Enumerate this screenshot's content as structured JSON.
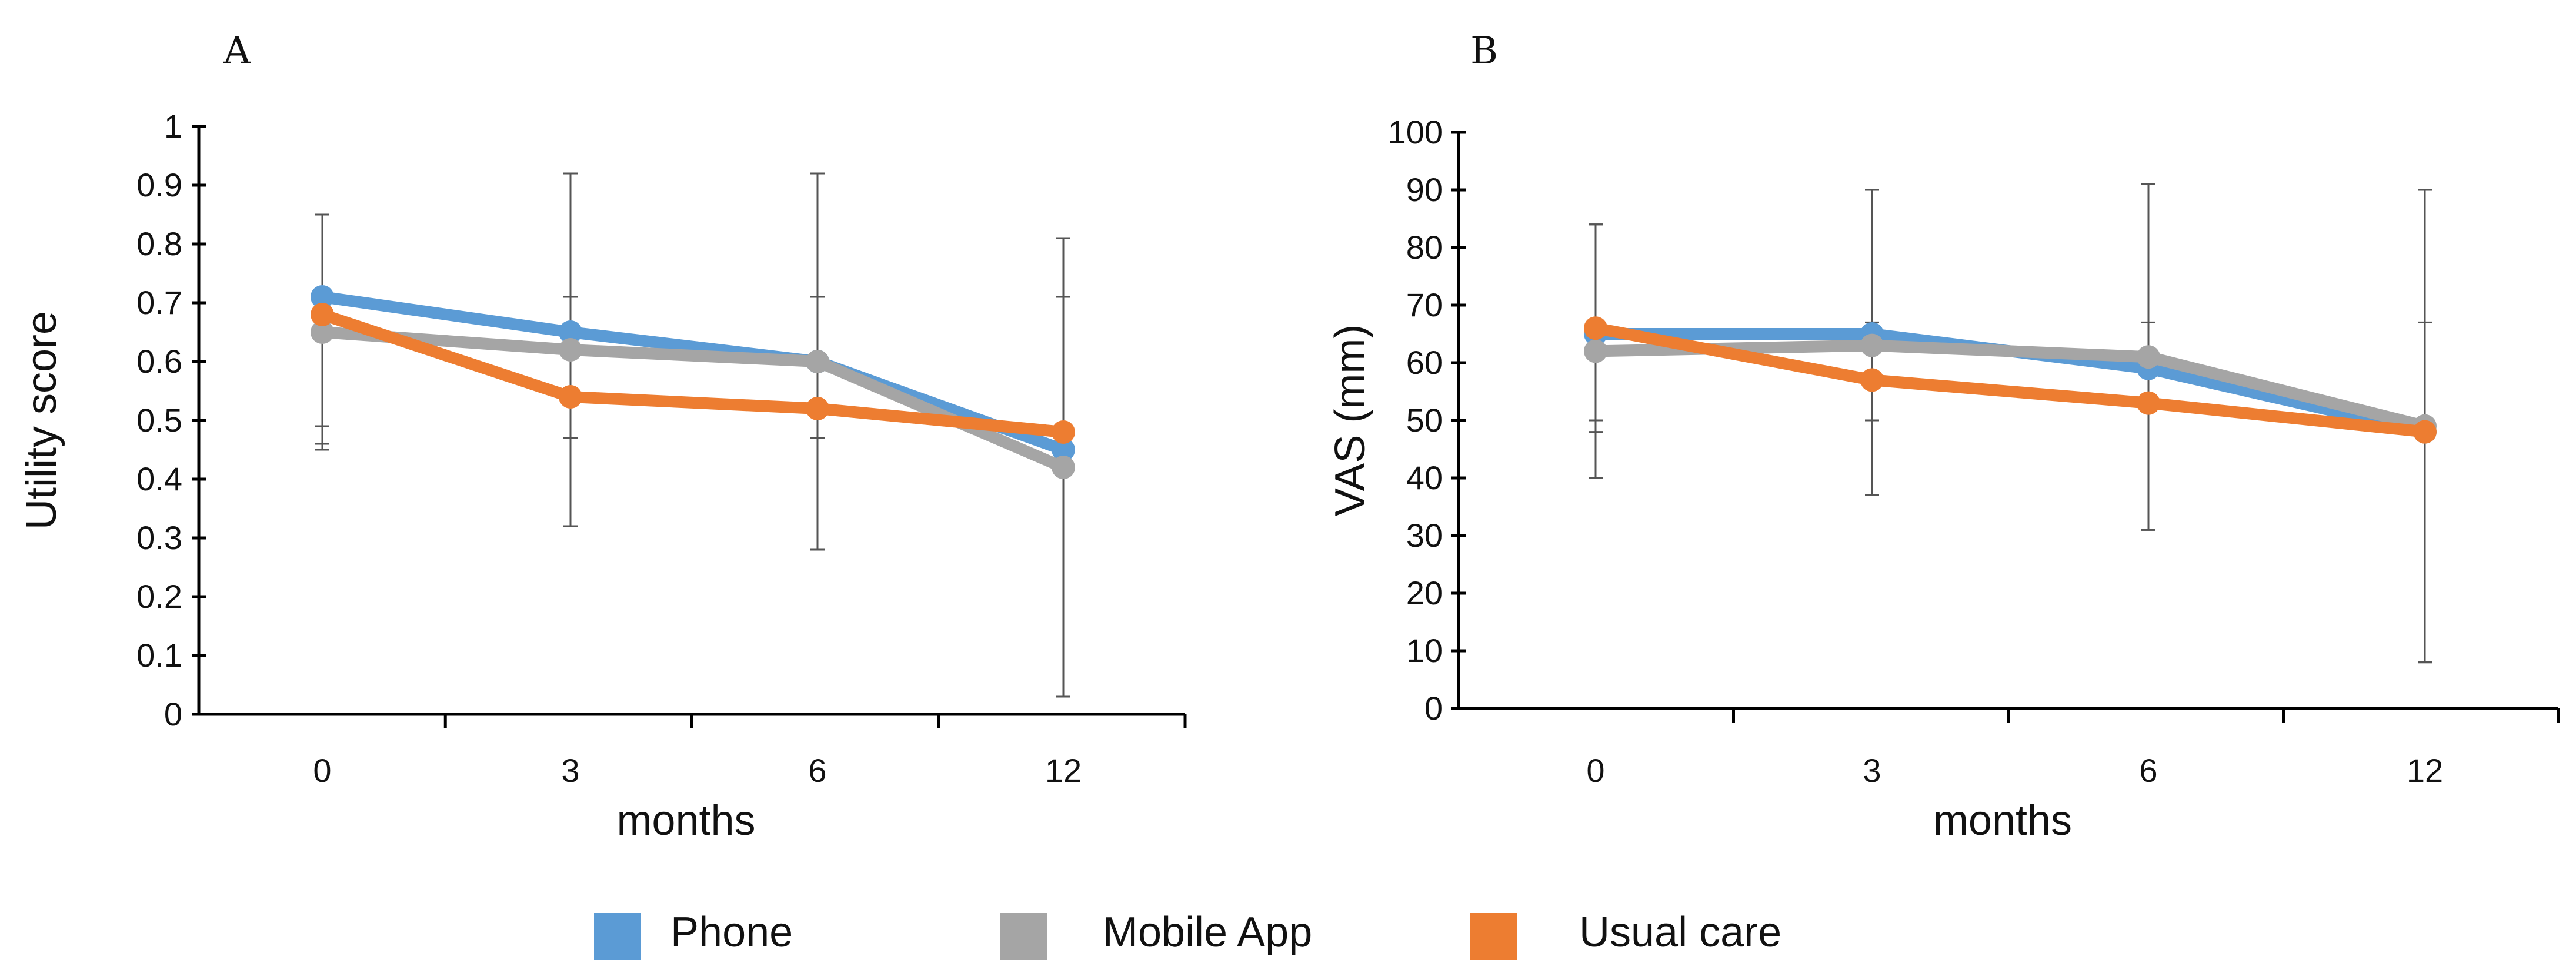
{
  "legend": [
    {
      "name": "Phone",
      "color": "#5b9bd5"
    },
    {
      "name": "Mobile App",
      "color": "#a5a5a5"
    },
    {
      "name": "Usual care",
      "color": "#ed7d31"
    }
  ],
  "chart_data": [
    {
      "type": "line",
      "panel": "A",
      "title": "",
      "xlabel": "months",
      "ylabel": "Utility score",
      "categories": [
        "0",
        "3",
        "6",
        "12"
      ],
      "ylim": [
        0,
        1
      ],
      "yticks": [
        "0",
        "0.1",
        "0.2",
        "0.3",
        "0.4",
        "0.5",
        "0.6",
        "0.7",
        "0.8",
        "0.9",
        "1"
      ],
      "series": [
        {
          "name": "Phone",
          "color": "#5b9bd5",
          "values": [
            0.71,
            0.65,
            0.6,
            0.45
          ],
          "err_low": [
            0.45,
            0.47,
            0.47,
            0.03
          ],
          "err_high": [
            0.85,
            0.92,
            0.92,
            0.81
          ]
        },
        {
          "name": "Mobile App",
          "color": "#a5a5a5",
          "values": [
            0.65,
            0.62,
            0.6,
            0.42
          ],
          "err_low": [
            0.46,
            0.32,
            0.28,
            0.03
          ],
          "err_high": [
            0.85,
            0.92,
            0.92,
            0.81
          ]
        },
        {
          "name": "Usual care",
          "color": "#ed7d31",
          "values": [
            0.68,
            0.54,
            0.52,
            0.48
          ],
          "err_low": [
            0.49,
            0.47,
            0.28,
            0.03
          ],
          "err_high": [
            0.85,
            0.71,
            0.71,
            0.71
          ]
        }
      ]
    },
    {
      "type": "line",
      "panel": "B",
      "title": "",
      "xlabel": "months",
      "ylabel": "VAS (mm)",
      "categories": [
        "0",
        "3",
        "6",
        "12"
      ],
      "ylim": [
        0,
        100
      ],
      "yticks": [
        "0",
        "10",
        "20",
        "30",
        "40",
        "50",
        "60",
        "70",
        "80",
        "90",
        "100"
      ],
      "series": [
        {
          "name": "Phone",
          "color": "#5b9bd5",
          "values": [
            65,
            65,
            59,
            48
          ],
          "err_low": [
            40,
            37,
            31,
            8
          ],
          "err_high": [
            84,
            90,
            91,
            90
          ]
        },
        {
          "name": "Mobile App",
          "color": "#a5a5a5",
          "values": [
            62,
            63,
            61,
            49
          ],
          "err_low": [
            48,
            50,
            31,
            8
          ],
          "err_high": [
            84,
            90,
            91,
            90
          ]
        },
        {
          "name": "Usual care",
          "color": "#ed7d31",
          "values": [
            66,
            57,
            53,
            48
          ],
          "err_low": [
            50,
            37,
            31,
            8
          ],
          "err_high": [
            84,
            67,
            67,
            67
          ]
        }
      ]
    }
  ]
}
